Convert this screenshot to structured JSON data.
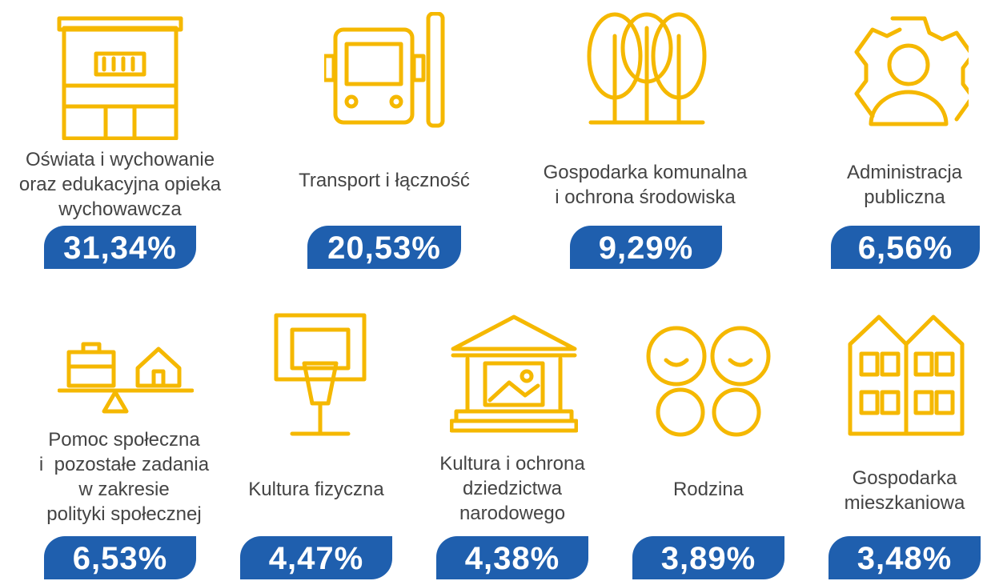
{
  "items": [
    {
      "label": [
        "Oświata i wychowanie",
        "oraz edukacyjna opieka",
        "wychowawcza"
      ],
      "value": "31,34%"
    },
    {
      "label": [
        "Transport i łączność"
      ],
      "value": "20,53%"
    },
    {
      "label": [
        "Gospodarka komunalna",
        "i ochrona środowiska"
      ],
      "value": "9,29%"
    },
    {
      "label": [
        "Administracja",
        "publiczna"
      ],
      "value": "6,56%"
    },
    {
      "label": [
        "Pomoc społeczna",
        "i  pozostałe zadania",
        "w zakresie",
        "polityki społecznej"
      ],
      "value": "6,53%"
    },
    {
      "label": [
        "Kultura fizyczna"
      ],
      "value": "4,47%"
    },
    {
      "label": [
        "Kultura i ochrona",
        "dziedzictwa",
        "narodowego"
      ],
      "value": "4,38%"
    },
    {
      "label": [
        "Rodzina"
      ],
      "value": "3,89%"
    },
    {
      "label": [
        "Gospodarka",
        "mieszkaniowa"
      ],
      "value": "3,48%"
    }
  ]
}
